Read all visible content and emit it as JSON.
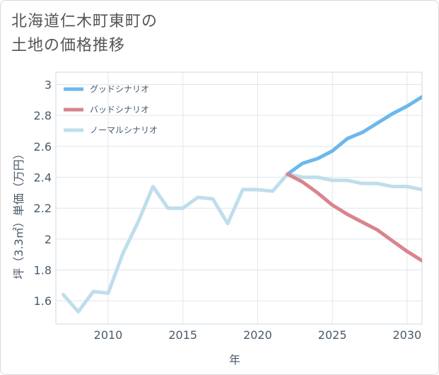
{
  "page": {
    "title_lines": [
      "北海道仁木町東町の",
      "土地の価格推移"
    ]
  },
  "chart_data": {
    "type": "line",
    "title": "北海道仁木町東町の土地の価格推移",
    "xlabel": "年",
    "ylabel": "坪（3.3㎡）単価（万円）",
    "xlim": [
      2006.5,
      2031
    ],
    "ylim": [
      1.45,
      3.08
    ],
    "xticks": [
      2010,
      2015,
      2020,
      2025,
      2030
    ],
    "xtick_labels": [
      "2010",
      "2015",
      "2020",
      "2025",
      "2030"
    ],
    "yticks": [
      1.6,
      1.8,
      2,
      2.2,
      2.4,
      2.6,
      2.8,
      3
    ],
    "ytick_labels": [
      "1.6",
      "1.8",
      "2",
      "2.2",
      "2.4",
      "2.6",
      "2.8",
      "3"
    ],
    "grid": true,
    "legend_position": "top-left",
    "series": [
      {
        "name": "グッドシナリオ",
        "color": "#6cb8ec",
        "x": [
          2022,
          2023,
          2024,
          2025,
          2026,
          2027,
          2028,
          2029,
          2030,
          2031
        ],
        "values": [
          2.42,
          2.49,
          2.52,
          2.57,
          2.65,
          2.69,
          2.75,
          2.81,
          2.86,
          2.92
        ]
      },
      {
        "name": "バッドシナリオ",
        "color": "#d9848d",
        "x": [
          2022,
          2023,
          2024,
          2025,
          2026,
          2027,
          2028,
          2029,
          2030,
          2031
        ],
        "values": [
          2.42,
          2.37,
          2.3,
          2.22,
          2.16,
          2.11,
          2.06,
          1.99,
          1.92,
          1.86
        ]
      },
      {
        "name": "ノーマルシナリオ",
        "color": "#bfdeec",
        "x": [
          2007,
          2008,
          2009,
          2010,
          2011,
          2012,
          2013,
          2014,
          2015,
          2016,
          2017,
          2018,
          2019,
          2020,
          2021,
          2022,
          2023,
          2024,
          2025,
          2026,
          2027,
          2028,
          2029,
          2030,
          2031
        ],
        "values": [
          1.64,
          1.53,
          1.66,
          1.65,
          1.91,
          2.11,
          2.34,
          2.2,
          2.2,
          2.27,
          2.26,
          2.1,
          2.32,
          2.32,
          2.31,
          2.42,
          2.4,
          2.4,
          2.38,
          2.38,
          2.36,
          2.36,
          2.34,
          2.34,
          2.32
        ]
      }
    ]
  }
}
